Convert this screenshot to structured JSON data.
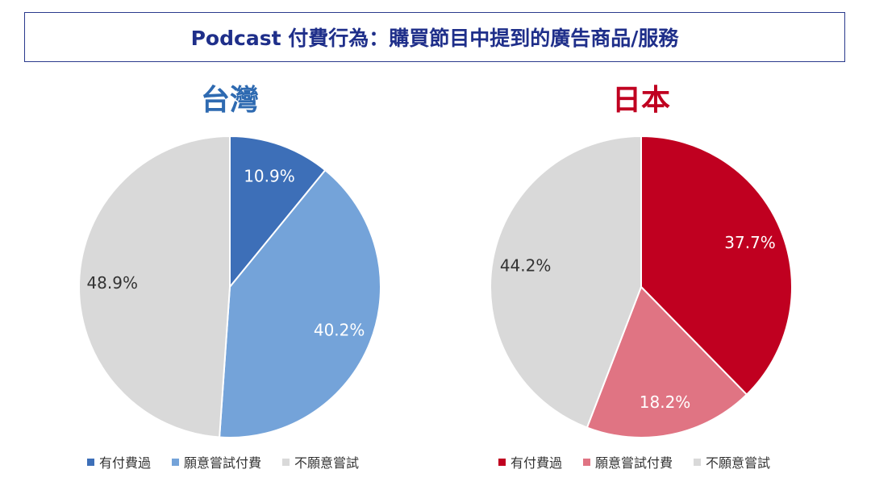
{
  "title": "Podcast 付費行為：購買節目中提到的廣告商品/服務",
  "chart_data": [
    {
      "type": "pie",
      "title": "台灣",
      "title_color": "#2e6ab1",
      "categories": [
        "有付費過",
        "願意嘗試付費",
        "不願意嘗試"
      ],
      "values": [
        10.9,
        40.2,
        48.9
      ],
      "labels": [
        "10.9%",
        "40.2%",
        "48.9%"
      ],
      "colors": [
        "#3d6fb8",
        "#74a3d9",
        "#d9d9d9"
      ],
      "label_colors": [
        "#ffffff",
        "#ffffff",
        "#333333"
      ],
      "legend": "bottom"
    },
    {
      "type": "pie",
      "title": "日本",
      "title_color": "#c00020",
      "categories": [
        "有付費過",
        "願意嘗試付費",
        "不願意嘗試"
      ],
      "values": [
        37.7,
        18.2,
        44.2
      ],
      "labels": [
        "37.7%",
        "18.2%",
        "44.2%"
      ],
      "colors": [
        "#c00020",
        "#e07483",
        "#d9d9d9"
      ],
      "label_colors": [
        "#ffffff",
        "#ffffff",
        "#333333"
      ],
      "legend": "bottom"
    }
  ]
}
